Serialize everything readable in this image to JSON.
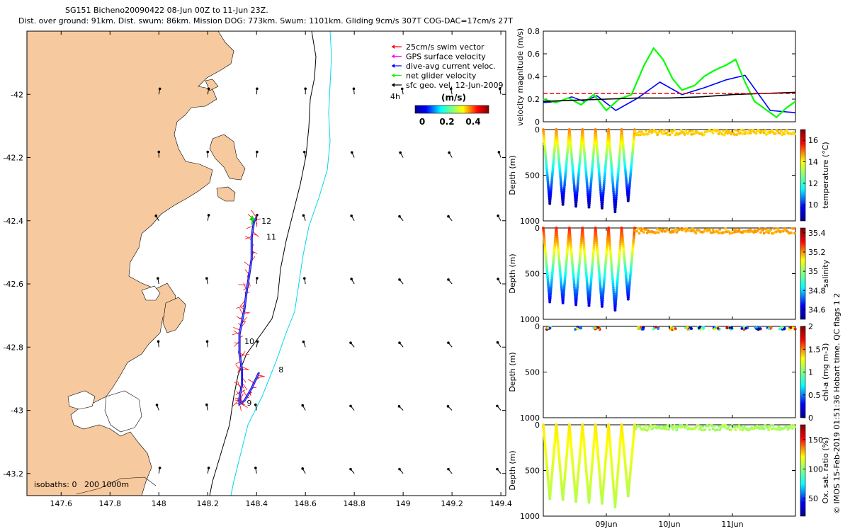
{
  "title": {
    "line1": "SG151 Bicheno20090422 08-Jun 00Z to 11-Jun 23Z.",
    "line2": "Dist. over ground: 91km. Dist. swum: 86km. Mission DOG: 773km. Swum: 1101km. Gliding 9cm/s 307T COG-DAC=17cm/s 27T"
  },
  "footer": "© IMOS 15-Feb-2019 01:51:36 Hobart time. QC flags 1  2",
  "colors": {
    "land": "#f7c99e",
    "glider_track": "#1010e0",
    "swim_vector": "#ff0000",
    "gps_velocity": "#ff00ff",
    "dac": "#0000ff",
    "net_velocity": "#00ff00",
    "geo_velocity": "#000000",
    "isobath_0_200": "#000000",
    "isobath_1000": "#00d8e8"
  },
  "map": {
    "legend": [
      {
        "label": "25cm/s swim vector",
        "color": "#ff0000"
      },
      {
        "label": "GPS surface velocity",
        "color": "#ff00ff"
      },
      {
        "label": "dive-avg current veloc.",
        "color": "#0000ff"
      },
      {
        "label": "net glider velocity",
        "color": "#00ff00"
      },
      {
        "label": "sfc geo. vel, 12-Jun-2009",
        "color": "#000000"
      }
    ],
    "colorbar": {
      "unit": "(m/s)",
      "ticks": [
        "0",
        "0.2",
        "0.4"
      ],
      "small_label": "4h"
    },
    "isobaths_label": "isobaths: 0   200 1000m",
    "day_labels": [
      "8",
      "9",
      "10",
      "11",
      "12"
    ],
    "x_ticks": [
      "147.6",
      "147.8",
      "148",
      "148.2",
      "148.4",
      "148.6",
      "148.8",
      "149",
      "149.2",
      "149.4"
    ],
    "y_ticks": [
      "-42",
      "-42.2",
      "-42.4",
      "-42.6",
      "-42.8",
      "-43",
      "-43.2"
    ]
  },
  "panels": {
    "velocity": {
      "ylabel": "velocity magnitude (m/s)",
      "y_ticks": [
        "0",
        "0.2",
        "0.4",
        "0.6",
        "0.8"
      ]
    },
    "temperature": {
      "ylabel": "Depth (m)",
      "cbar_label": "temperature (°C)",
      "cbar_ticks": [
        "10",
        "12",
        "14",
        "16"
      ],
      "y_ticks": [
        "0",
        "500",
        "1000"
      ]
    },
    "salinity": {
      "ylabel": "Depth (m)",
      "cbar_label": "salinity",
      "cbar_ticks": [
        "34.6",
        "34.8",
        "35",
        "35.2",
        "35.4"
      ],
      "y_ticks": [
        "0",
        "500",
        "1000"
      ]
    },
    "chla": {
      "ylabel": "Depth (m)",
      "cbar_label": "chl-a (mg m-3)",
      "cbar_ticks": [
        "0",
        "0.5",
        "1",
        "1.5",
        "2"
      ],
      "y_ticks": [
        "0",
        "500",
        "1000"
      ]
    },
    "oxygen": {
      "ylabel": "Depth (m)",
      "cbar_label": "Ox. sat. ratio (%)",
      "cbar_ticks": [
        "50",
        "100",
        "150"
      ],
      "y_ticks": [
        "0",
        "500",
        "1000"
      ]
    },
    "time_ticks": [
      "09Jun",
      "10Jun",
      "11Jun"
    ]
  },
  "chart_data": [
    {
      "type": "scatter",
      "x_ticks": [
        "147.6",
        "147.8",
        "148",
        "148.2",
        "148.4",
        "148.6",
        "148.8",
        "149",
        "149.2",
        "149.4"
      ],
      "y_ticks": [
        "-42",
        "-42.2",
        "-42.4",
        "-42.6",
        "-42.8",
        "-43",
        "-43.2"
      ],
      "xlim": [
        147.46,
        149.42
      ],
      "ylim": [
        -43.27,
        -41.8
      ],
      "glider_track": {
        "lon": [
          148.4,
          148.39,
          148.38,
          148.38,
          148.37,
          148.36,
          148.35,
          148.34,
          148.33,
          148.33,
          148.34,
          148.34,
          148.33,
          148.33,
          148.35,
          148.38,
          148.41
        ],
        "lat": [
          -42.39,
          -42.4,
          -42.45,
          -42.52,
          -42.57,
          -42.62,
          -42.68,
          -42.72,
          -42.76,
          -42.82,
          -42.87,
          -42.92,
          -42.96,
          -42.98,
          -42.97,
          -42.93,
          -42.88
        ]
      },
      "day_markers": [
        {
          "label": "12",
          "lon": 148.42,
          "lat": -42.41
        },
        {
          "label": "11",
          "lon": 148.44,
          "lat": -42.46
        },
        {
          "label": "10",
          "lon": 148.35,
          "lat": -42.79
        },
        {
          "label": "9",
          "lon": 148.36,
          "lat": -42.985
        },
        {
          "label": "8",
          "lon": 148.49,
          "lat": -42.88
        }
      ],
      "geo_velocity_grid": {
        "lon": [
          148.0,
          148.2,
          148.4,
          148.6,
          148.8,
          149.0,
          149.2,
          149.4
        ],
        "lat": [
          -42.0,
          -42.2,
          -42.4,
          -42.6,
          -42.8,
          -43.0,
          -43.2
        ],
        "angle_deg": [
          [
            80,
            80,
            85,
            90,
            95,
            100,
            100,
            100
          ],
          [
            90,
            90,
            85,
            100,
            115,
            120,
            120,
            110
          ],
          [
            120,
            80,
            85,
            110,
            120,
            130,
            130,
            120
          ],
          [
            100,
            100,
            85,
            100,
            120,
            130,
            130,
            120
          ],
          [
            95,
            95,
            80,
            110,
            130,
            130,
            130,
            125
          ],
          [
            110,
            100,
            100,
            120,
            130,
            135,
            135,
            130
          ],
          [
            80,
            80,
            100,
            120,
            130,
            130,
            130,
            130
          ]
        ]
      }
    },
    {
      "type": "line",
      "ylabel": "velocity magnitude (m/s)",
      "ylim": [
        0,
        0.8
      ],
      "xlim_days": [
        8,
        12
      ],
      "series": [
        {
          "name": "dive-avg current veloc.",
          "color": "#0000ff",
          "x": [
            8.0,
            8.25,
            8.45,
            8.65,
            8.85,
            9.15,
            9.5,
            9.85,
            10.2,
            10.55,
            10.9,
            11.2,
            11.6,
            12.0
          ],
          "y": [
            0.17,
            0.18,
            0.22,
            0.18,
            0.23,
            0.1,
            0.21,
            0.35,
            0.24,
            0.3,
            0.37,
            0.41,
            0.1,
            0.08
          ]
        },
        {
          "name": "net glider velocity",
          "color": "#00ff00",
          "x": [
            8.0,
            8.2,
            8.4,
            8.6,
            8.8,
            9.0,
            9.2,
            9.4,
            9.6,
            9.75,
            9.9,
            10.05,
            10.2,
            10.4,
            10.55,
            10.7,
            10.9,
            11.05,
            11.2,
            11.35,
            11.55,
            11.7,
            11.85,
            12.0
          ],
          "y": [
            0.2,
            0.17,
            0.21,
            0.15,
            0.24,
            0.1,
            0.2,
            0.24,
            0.5,
            0.65,
            0.55,
            0.38,
            0.28,
            0.32,
            0.4,
            0.45,
            0.5,
            0.55,
            0.35,
            0.18,
            0.1,
            0.04,
            0.12,
            0.18
          ]
        },
        {
          "name": "sfc geo. vel",
          "color": "#000000",
          "x": [
            8.0,
            8.5,
            9.0,
            9.5,
            10.0,
            10.5,
            11.0,
            11.5,
            12.0
          ],
          "y": [
            0.18,
            0.19,
            0.2,
            0.21,
            0.21,
            0.22,
            0.24,
            0.25,
            0.26
          ]
        },
        {
          "name": "25cm/s reference",
          "color": "#ff0000",
          "x": [
            8.0,
            12.0
          ],
          "y": [
            0.25,
            0.25
          ]
        }
      ]
    },
    {
      "type": "scatter",
      "ylabel": "Depth (m)",
      "colorbar_label": "temperature (°C)",
      "ylim": [
        1000,
        0
      ],
      "dive_max_depth_m": [
        810,
        820,
        840,
        850,
        860,
        900,
        780
      ],
      "deep_dives_end_day": 9.45
    },
    {
      "type": "scatter",
      "ylabel": "Depth (m)",
      "colorbar_label": "salinity",
      "ylim": [
        1000,
        0
      ],
      "dive_max_depth_m": [
        810,
        820,
        840,
        850,
        860,
        900,
        780
      ],
      "deep_dives_end_day": 9.45
    },
    {
      "type": "scatter",
      "ylabel": "Depth (m)",
      "colorbar_label": "chl-a (mg m-3)",
      "ylim": [
        1000,
        0
      ]
    },
    {
      "type": "scatter",
      "ylabel": "Depth (m)",
      "colorbar_label": "Ox. sat. ratio (%)",
      "ylim": [
        1000,
        0
      ],
      "dive_max_depth_m": [
        810,
        820,
        840,
        850,
        860,
        900,
        780
      ],
      "deep_dives_end_day": 9.45
    }
  ]
}
